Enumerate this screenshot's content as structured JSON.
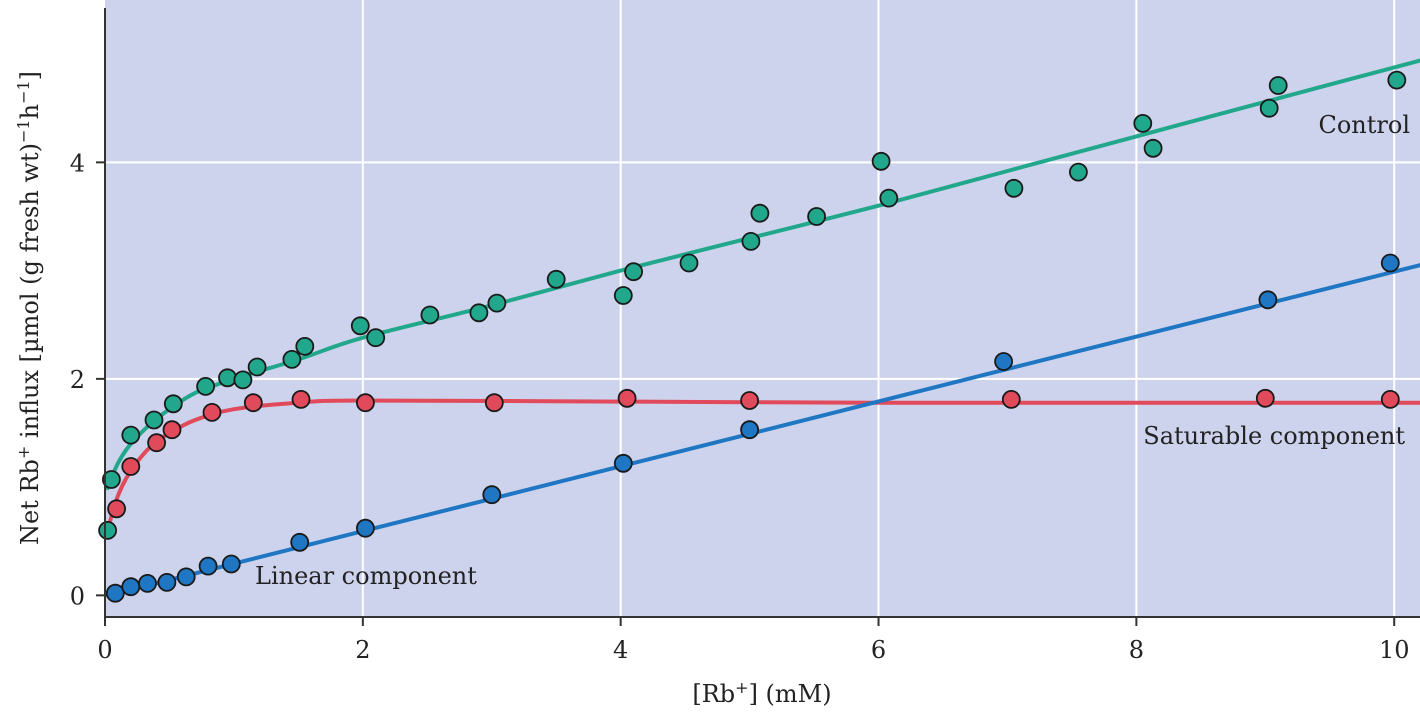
{
  "chart_data": {
    "type": "scatter",
    "title": "",
    "xlabel": "[Rb+] (mM)",
    "ylabel": "Net Rb+ influx [µmol (g fresh wt)-1h-1]",
    "xlim": [
      0,
      10.2
    ],
    "ylim": [
      -0.2,
      5.5
    ],
    "x_ticks": [
      "0",
      "2",
      "4",
      "6",
      "8",
      "10"
    ],
    "y_ticks": [
      "0",
      "2",
      "4"
    ],
    "grid": true,
    "plot_background": "#cdd3ec",
    "series": [
      {
        "name": "Control",
        "color": "#21a88c",
        "points": [
          [
            0.02,
            0.6
          ],
          [
            0.05,
            1.07
          ],
          [
            0.2,
            1.48
          ],
          [
            0.38,
            1.62
          ],
          [
            0.53,
            1.77
          ],
          [
            0.78,
            1.93
          ],
          [
            0.95,
            2.01
          ],
          [
            1.07,
            1.99
          ],
          [
            1.18,
            2.11
          ],
          [
            1.45,
            2.18
          ],
          [
            1.55,
            2.3
          ],
          [
            1.98,
            2.49
          ],
          [
            2.1,
            2.38
          ],
          [
            2.52,
            2.59
          ],
          [
            2.9,
            2.61
          ],
          [
            3.04,
            2.7
          ],
          [
            3.5,
            2.92
          ],
          [
            4.02,
            2.77
          ],
          [
            4.1,
            2.99
          ],
          [
            4.53,
            3.07
          ],
          [
            5.01,
            3.27
          ],
          [
            5.08,
            3.53
          ],
          [
            5.52,
            3.5
          ],
          [
            6.02,
            4.01
          ],
          [
            6.08,
            3.67
          ],
          [
            7.05,
            3.76
          ],
          [
            7.55,
            3.91
          ],
          [
            8.05,
            4.36
          ],
          [
            8.13,
            4.13
          ],
          [
            9.03,
            4.5
          ],
          [
            9.1,
            4.71
          ],
          [
            10.02,
            4.76
          ]
        ],
        "curve": [
          [
            0.02,
            0.99
          ],
          [
            0.1,
            1.22
          ],
          [
            0.2,
            1.4
          ],
          [
            0.35,
            1.58
          ],
          [
            0.5,
            1.72
          ],
          [
            0.7,
            1.87
          ],
          [
            1.0,
            2.0
          ],
          [
            1.5,
            2.18
          ],
          [
            2.0,
            2.38
          ],
          [
            3.0,
            2.68
          ],
          [
            4.0,
            3.0
          ],
          [
            5.0,
            3.3
          ],
          [
            6.0,
            3.6
          ],
          [
            7.0,
            3.92
          ],
          [
            8.0,
            4.24
          ],
          [
            9.0,
            4.56
          ],
          [
            10.2,
            4.94
          ]
        ]
      },
      {
        "name": "Saturable component",
        "color": "#e04a5b",
        "points": [
          [
            0.09,
            0.8
          ],
          [
            0.2,
            1.19
          ],
          [
            0.4,
            1.41
          ],
          [
            0.52,
            1.53
          ],
          [
            0.83,
            1.69
          ],
          [
            1.15,
            1.78
          ],
          [
            1.52,
            1.81
          ],
          [
            2.02,
            1.78
          ],
          [
            3.02,
            1.78
          ],
          [
            4.05,
            1.82
          ],
          [
            5.0,
            1.8
          ],
          [
            7.03,
            1.81
          ],
          [
            9.0,
            1.82
          ],
          [
            9.97,
            1.81
          ]
        ],
        "curve": [
          [
            0.02,
            0.6
          ],
          [
            0.1,
            0.92
          ],
          [
            0.2,
            1.15
          ],
          [
            0.35,
            1.37
          ],
          [
            0.5,
            1.5
          ],
          [
            0.7,
            1.62
          ],
          [
            1.0,
            1.72
          ],
          [
            1.5,
            1.78
          ],
          [
            2.0,
            1.8
          ],
          [
            4.0,
            1.79
          ],
          [
            6.0,
            1.78
          ],
          [
            8.0,
            1.78
          ],
          [
            10.2,
            1.78
          ]
        ]
      },
      {
        "name": "Linear component",
        "color": "#1f76c3",
        "points": [
          [
            0.08,
            0.02
          ],
          [
            0.2,
            0.08
          ],
          [
            0.33,
            0.11
          ],
          [
            0.48,
            0.12
          ],
          [
            0.63,
            0.17
          ],
          [
            0.8,
            0.27
          ],
          [
            0.98,
            0.29
          ],
          [
            1.51,
            0.49
          ],
          [
            2.02,
            0.62
          ],
          [
            3.0,
            0.93
          ],
          [
            4.02,
            1.22
          ],
          [
            5.0,
            1.53
          ],
          [
            6.97,
            2.16
          ],
          [
            9.02,
            2.73
          ],
          [
            9.97,
            3.07
          ]
        ],
        "curve": [
          [
            0.02,
            0.0
          ],
          [
            10.2,
            3.05
          ]
        ]
      }
    ],
    "annotations": {
      "control": "Control",
      "saturable": "Saturable component",
      "linear": "Linear component"
    }
  }
}
